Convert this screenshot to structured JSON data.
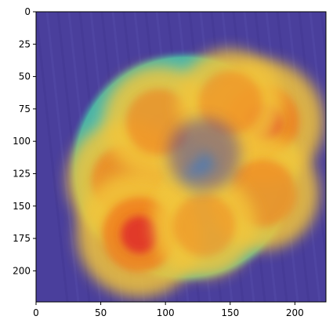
{
  "chart_data": {
    "type": "heatmap",
    "title": "",
    "xlabel": "",
    "ylabel": "",
    "xlim": [
      0,
      224
    ],
    "ylim": [
      224,
      0
    ],
    "xticks": [
      0,
      50,
      100,
      150,
      200
    ],
    "yticks": [
      0,
      25,
      50,
      75,
      100,
      125,
      150,
      175,
      200
    ],
    "colormap": "jet",
    "overlay": "attention heatmap blended over photo of a round pizza",
    "colors": {
      "background": "#4a3f9c",
      "low": "#3b2fa8",
      "mid": "#40d3c8",
      "high_yellow": "#f2c43a",
      "high_orange": "#f07a1e",
      "peak_red": "#e0302a"
    },
    "hotspots": [
      {
        "x": 70,
        "y": 130,
        "intensity": 0.85
      },
      {
        "x": 80,
        "y": 172,
        "intensity": 1.0
      },
      {
        "x": 175,
        "y": 85,
        "intensity": 0.95
      },
      {
        "x": 95,
        "y": 85,
        "intensity": 0.7
      },
      {
        "x": 175,
        "y": 140,
        "intensity": 0.75
      },
      {
        "x": 150,
        "y": 70,
        "intensity": 0.6
      },
      {
        "x": 130,
        "y": 165,
        "intensity": 0.55
      }
    ],
    "object": {
      "cx": 115,
      "cy": 120,
      "r": 92
    }
  }
}
